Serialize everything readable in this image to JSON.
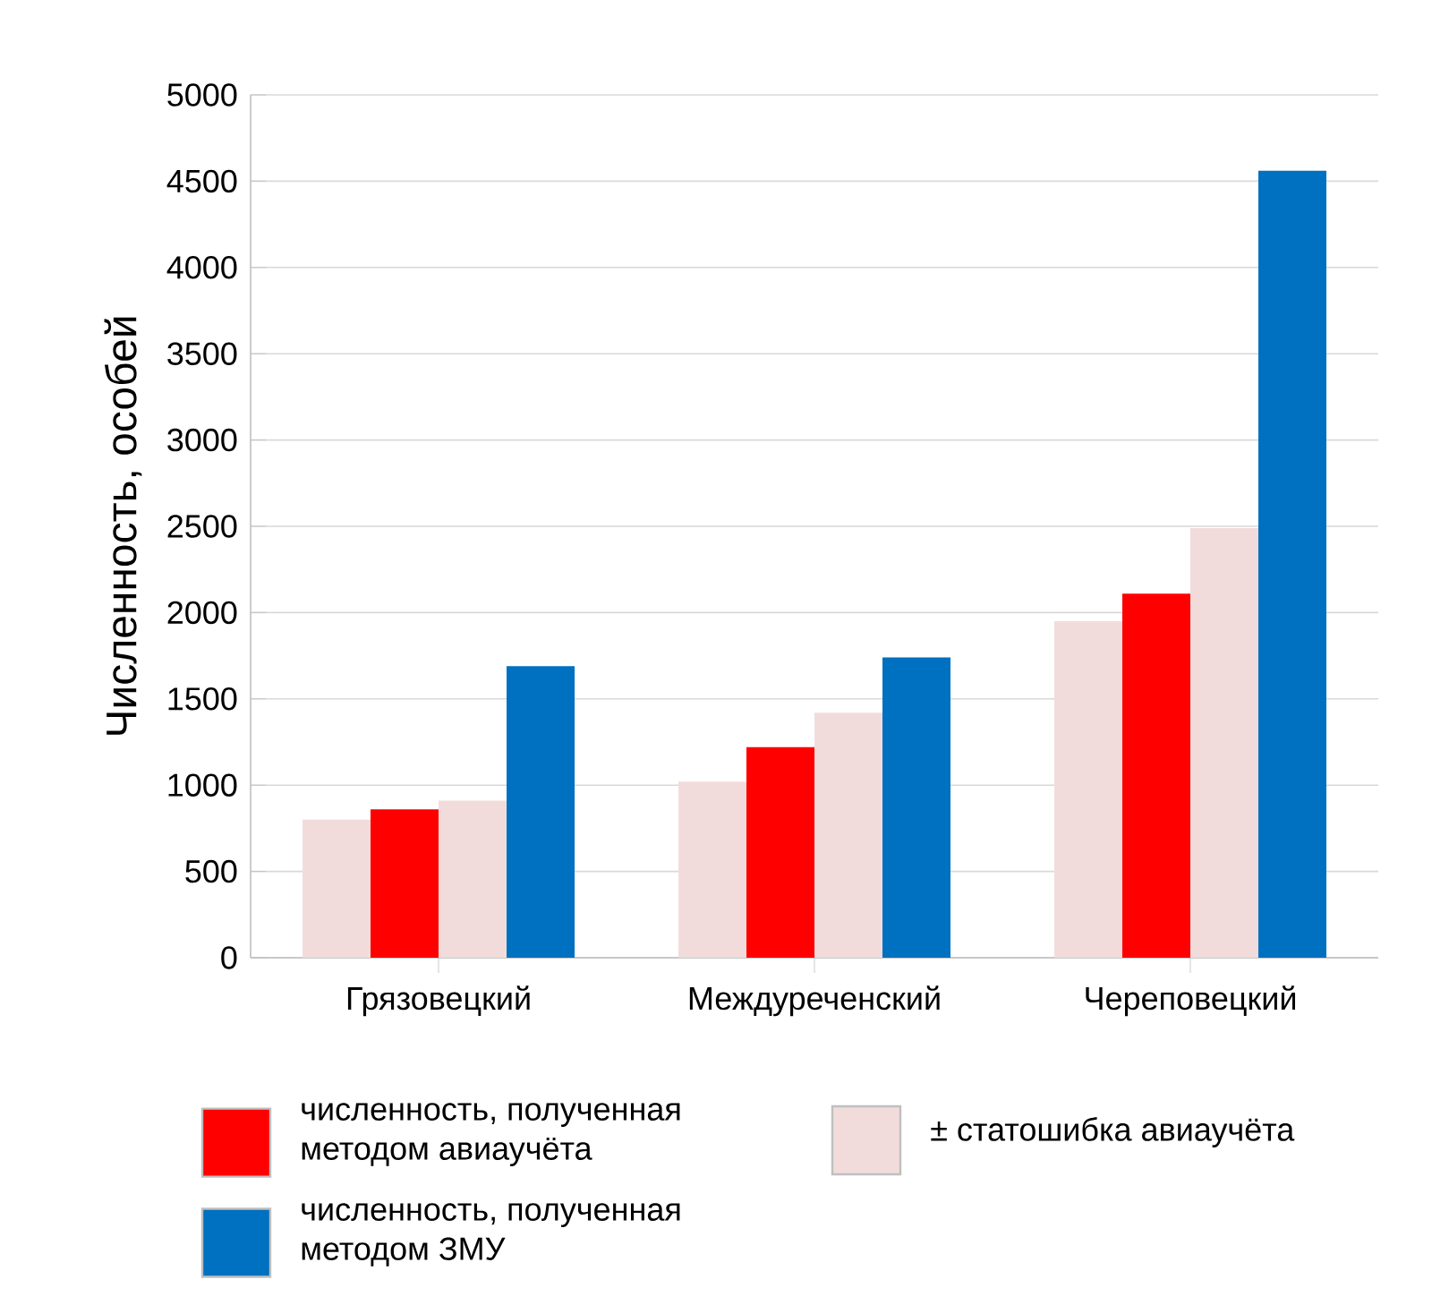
{
  "chart_data": {
    "type": "bar",
    "ylabel": "Численность, особей",
    "categories": [
      "Грязовецкий",
      "Междуреченский",
      "Череповецкий"
    ],
    "series": [
      {
        "color": "#f2dcdb",
        "values": [
          800,
          1020,
          1950
        ]
      },
      {
        "name": "численность, полученная методом авиаучёта",
        "color": "#ff0000",
        "values": [
          860,
          1220,
          2110
        ]
      },
      {
        "name": "± статошибка авиаучёта",
        "color": "#f2dcdb",
        "values": [
          910,
          1420,
          2490
        ]
      },
      {
        "name": "численность, полученная методом ЗМУ",
        "color": "#0070c0",
        "values": [
          1690,
          1740,
          4560
        ]
      }
    ],
    "ylim": [
      0,
      5000
    ],
    "yticks": [
      0,
      500,
      1000,
      1500,
      2000,
      2500,
      3000,
      3500,
      4000,
      4500,
      5000
    ],
    "grid": "y",
    "legend": "bottom"
  }
}
